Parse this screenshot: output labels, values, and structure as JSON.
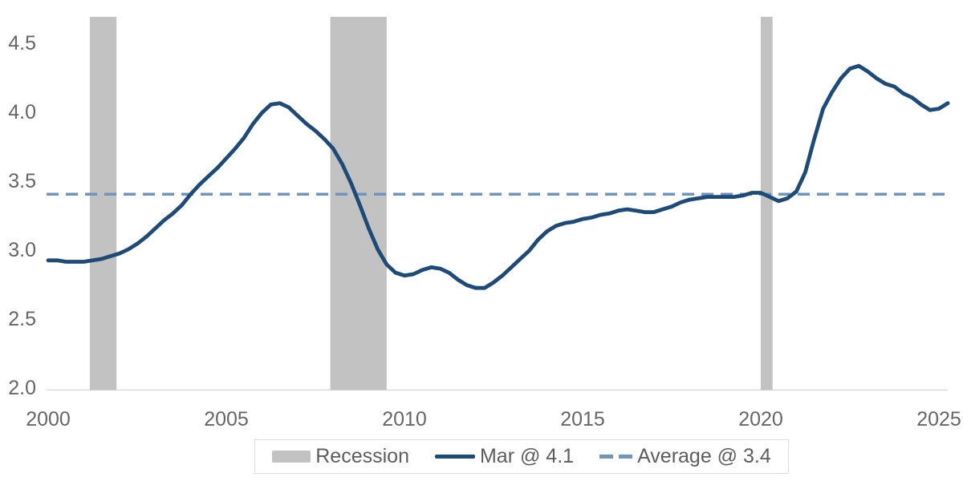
{
  "chart_data": {
    "type": "line",
    "title": "",
    "xlabel": "",
    "ylabel": "",
    "xlim": [
      2000,
      2025.25
    ],
    "ylim": [
      2.0,
      4.7
    ],
    "grid": false,
    "legend_position": "bottom",
    "x_ticks": [
      2000,
      2005,
      2010,
      2015,
      2020,
      2025
    ],
    "y_ticks": [
      2.0,
      2.5,
      3.0,
      3.5,
      4.0,
      4.5
    ],
    "tick_color": "#666666",
    "axis_color": "#d9d9d9",
    "series": [
      {
        "name": "Mar @ 4.1",
        "color": "#1e4a78",
        "style": "solid",
        "points": [
          [
            2000.0,
            2.92
          ],
          [
            2000.25,
            2.92
          ],
          [
            2000.5,
            2.91
          ],
          [
            2000.75,
            2.91
          ],
          [
            2001.0,
            2.91
          ],
          [
            2001.25,
            2.92
          ],
          [
            2001.5,
            2.93
          ],
          [
            2001.75,
            2.95
          ],
          [
            2002.0,
            2.97
          ],
          [
            2002.25,
            3.0
          ],
          [
            2002.5,
            3.04
          ],
          [
            2002.75,
            3.09
          ],
          [
            2003.0,
            3.15
          ],
          [
            2003.25,
            3.21
          ],
          [
            2003.5,
            3.26
          ],
          [
            2003.75,
            3.32
          ],
          [
            2004.0,
            3.4
          ],
          [
            2004.25,
            3.47
          ],
          [
            2004.5,
            3.53
          ],
          [
            2004.75,
            3.59
          ],
          [
            2005.0,
            3.66
          ],
          [
            2005.25,
            3.73
          ],
          [
            2005.5,
            3.81
          ],
          [
            2005.75,
            3.91
          ],
          [
            2006.0,
            3.99
          ],
          [
            2006.25,
            4.05
          ],
          [
            2006.5,
            4.06
          ],
          [
            2006.75,
            4.03
          ],
          [
            2007.0,
            3.97
          ],
          [
            2007.25,
            3.91
          ],
          [
            2007.5,
            3.86
          ],
          [
            2007.75,
            3.8
          ],
          [
            2008.0,
            3.73
          ],
          [
            2008.25,
            3.62
          ],
          [
            2008.5,
            3.48
          ],
          [
            2008.75,
            3.32
          ],
          [
            2009.0,
            3.15
          ],
          [
            2009.25,
            3.0
          ],
          [
            2009.5,
            2.89
          ],
          [
            2009.75,
            2.83
          ],
          [
            2010.0,
            2.81
          ],
          [
            2010.25,
            2.82
          ],
          [
            2010.5,
            2.85
          ],
          [
            2010.75,
            2.87
          ],
          [
            2011.0,
            2.86
          ],
          [
            2011.25,
            2.83
          ],
          [
            2011.5,
            2.78
          ],
          [
            2011.75,
            2.74
          ],
          [
            2012.0,
            2.72
          ],
          [
            2012.25,
            2.72
          ],
          [
            2012.5,
            2.76
          ],
          [
            2012.75,
            2.81
          ],
          [
            2013.0,
            2.87
          ],
          [
            2013.25,
            2.93
          ],
          [
            2013.5,
            2.99
          ],
          [
            2013.75,
            3.07
          ],
          [
            2014.0,
            3.13
          ],
          [
            2014.25,
            3.17
          ],
          [
            2014.5,
            3.19
          ],
          [
            2014.75,
            3.2
          ],
          [
            2015.0,
            3.22
          ],
          [
            2015.25,
            3.23
          ],
          [
            2015.5,
            3.25
          ],
          [
            2015.75,
            3.26
          ],
          [
            2016.0,
            3.28
          ],
          [
            2016.25,
            3.29
          ],
          [
            2016.5,
            3.28
          ],
          [
            2016.75,
            3.27
          ],
          [
            2017.0,
            3.27
          ],
          [
            2017.25,
            3.29
          ],
          [
            2017.5,
            3.31
          ],
          [
            2017.75,
            3.34
          ],
          [
            2018.0,
            3.36
          ],
          [
            2018.25,
            3.37
          ],
          [
            2018.5,
            3.38
          ],
          [
            2018.75,
            3.38
          ],
          [
            2019.0,
            3.38
          ],
          [
            2019.25,
            3.38
          ],
          [
            2019.5,
            3.39
          ],
          [
            2019.75,
            3.41
          ],
          [
            2020.0,
            3.41
          ],
          [
            2020.25,
            3.38
          ],
          [
            2020.5,
            3.35
          ],
          [
            2020.75,
            3.37
          ],
          [
            2021.0,
            3.42
          ],
          [
            2021.25,
            3.56
          ],
          [
            2021.5,
            3.8
          ],
          [
            2021.75,
            4.02
          ],
          [
            2022.0,
            4.14
          ],
          [
            2022.25,
            4.24
          ],
          [
            2022.5,
            4.31
          ],
          [
            2022.75,
            4.33
          ],
          [
            2023.0,
            4.29
          ],
          [
            2023.25,
            4.24
          ],
          [
            2023.5,
            4.2
          ],
          [
            2023.75,
            4.18
          ],
          [
            2024.0,
            4.13
          ],
          [
            2024.25,
            4.1
          ],
          [
            2024.5,
            4.05
          ],
          [
            2024.75,
            4.01
          ],
          [
            2025.0,
            4.02
          ],
          [
            2025.25,
            4.06
          ]
        ]
      }
    ],
    "average": {
      "label": "Average @ 3.4",
      "value": 3.4,
      "color": "#7095ba",
      "style": "dashed"
    },
    "recession_bands": {
      "label": "Recession",
      "color": "#c2c2c2",
      "ranges": [
        [
          2001.17,
          2001.92
        ],
        [
          2007.92,
          2009.5
        ],
        [
          2020.0,
          2020.33
        ]
      ]
    }
  },
  "legend": {
    "recession_label": "Recession",
    "series_label": "Mar @ 4.1",
    "average_label": "Average @ 3.4"
  }
}
